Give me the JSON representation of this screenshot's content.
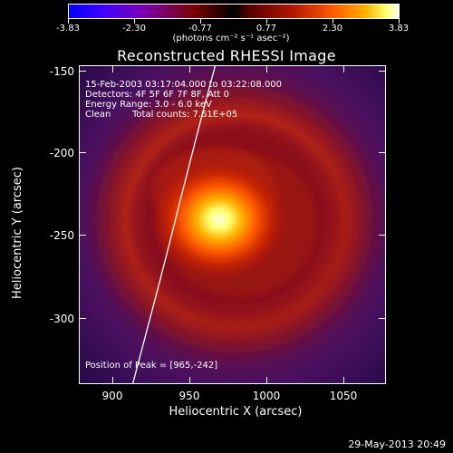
{
  "colorbar": {
    "tick_labels": [
      "-3.83",
      "-2.30",
      "-0.77",
      "0.77",
      "2.30",
      "3.83"
    ],
    "units": "(photons cm⁻² s⁻¹ asec⁻²)"
  },
  "title": "Reconstructed RHESSI Image",
  "info": {
    "time_range": "15-Feb-2003 03:17:04.000 to 03:22:08.000",
    "detectors": "Detectors: 4F 5F 6F 7F 8F, Att 0",
    "energy_range": "Energy Range: 3.0 - 6.0 keV",
    "algorithm": "Clean",
    "total_counts": "Total counts: 7.61E+05"
  },
  "peak_text": "Position of Peak = [965,-242]",
  "axes": {
    "xlabel": "Heliocentric X (arcsec)",
    "ylabel": "Heliocentric Y (arcsec)",
    "x_ticks": [
      "900",
      "950",
      "1000",
      "1050"
    ],
    "y_ticks": [
      "-150",
      "-200",
      "-250",
      "-300"
    ]
  },
  "timestamp": "29-May-2013 20:49",
  "colors": {
    "background": "#000000",
    "foreground": "#ffffff"
  }
}
